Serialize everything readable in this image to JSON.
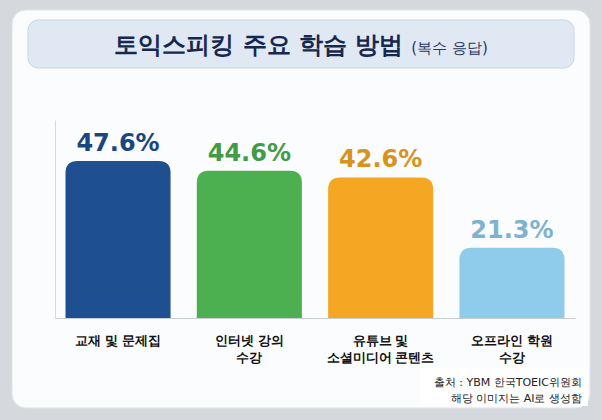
{
  "chart_data": {
    "type": "bar",
    "title": "토익스피킹 주요 학습 방법",
    "subtitle": "(복수 응답)",
    "categories": [
      "교재 및 문제집",
      "인터넷 강의\n수강",
      "유튜브 및\n소셜미디어 콘텐츠",
      "오프라인 학원\n수강"
    ],
    "values": [
      47.6,
      44.6,
      42.6,
      21.3
    ],
    "value_labels": [
      "47.6%",
      "44.6%",
      "42.6%",
      "21.3%"
    ],
    "colors": [
      "#1d4f91",
      "#4caf50",
      "#f5a623",
      "#8fcbea"
    ],
    "ylim": [
      0,
      60
    ],
    "yticks": [
      0,
      60
    ],
    "grid": false,
    "data_labels": true,
    "tick_labels": false,
    "annotations": [
      "출처 : YBM 한국TOEIC위원회",
      "해당 이미지는 AI로 생성함"
    ]
  }
}
